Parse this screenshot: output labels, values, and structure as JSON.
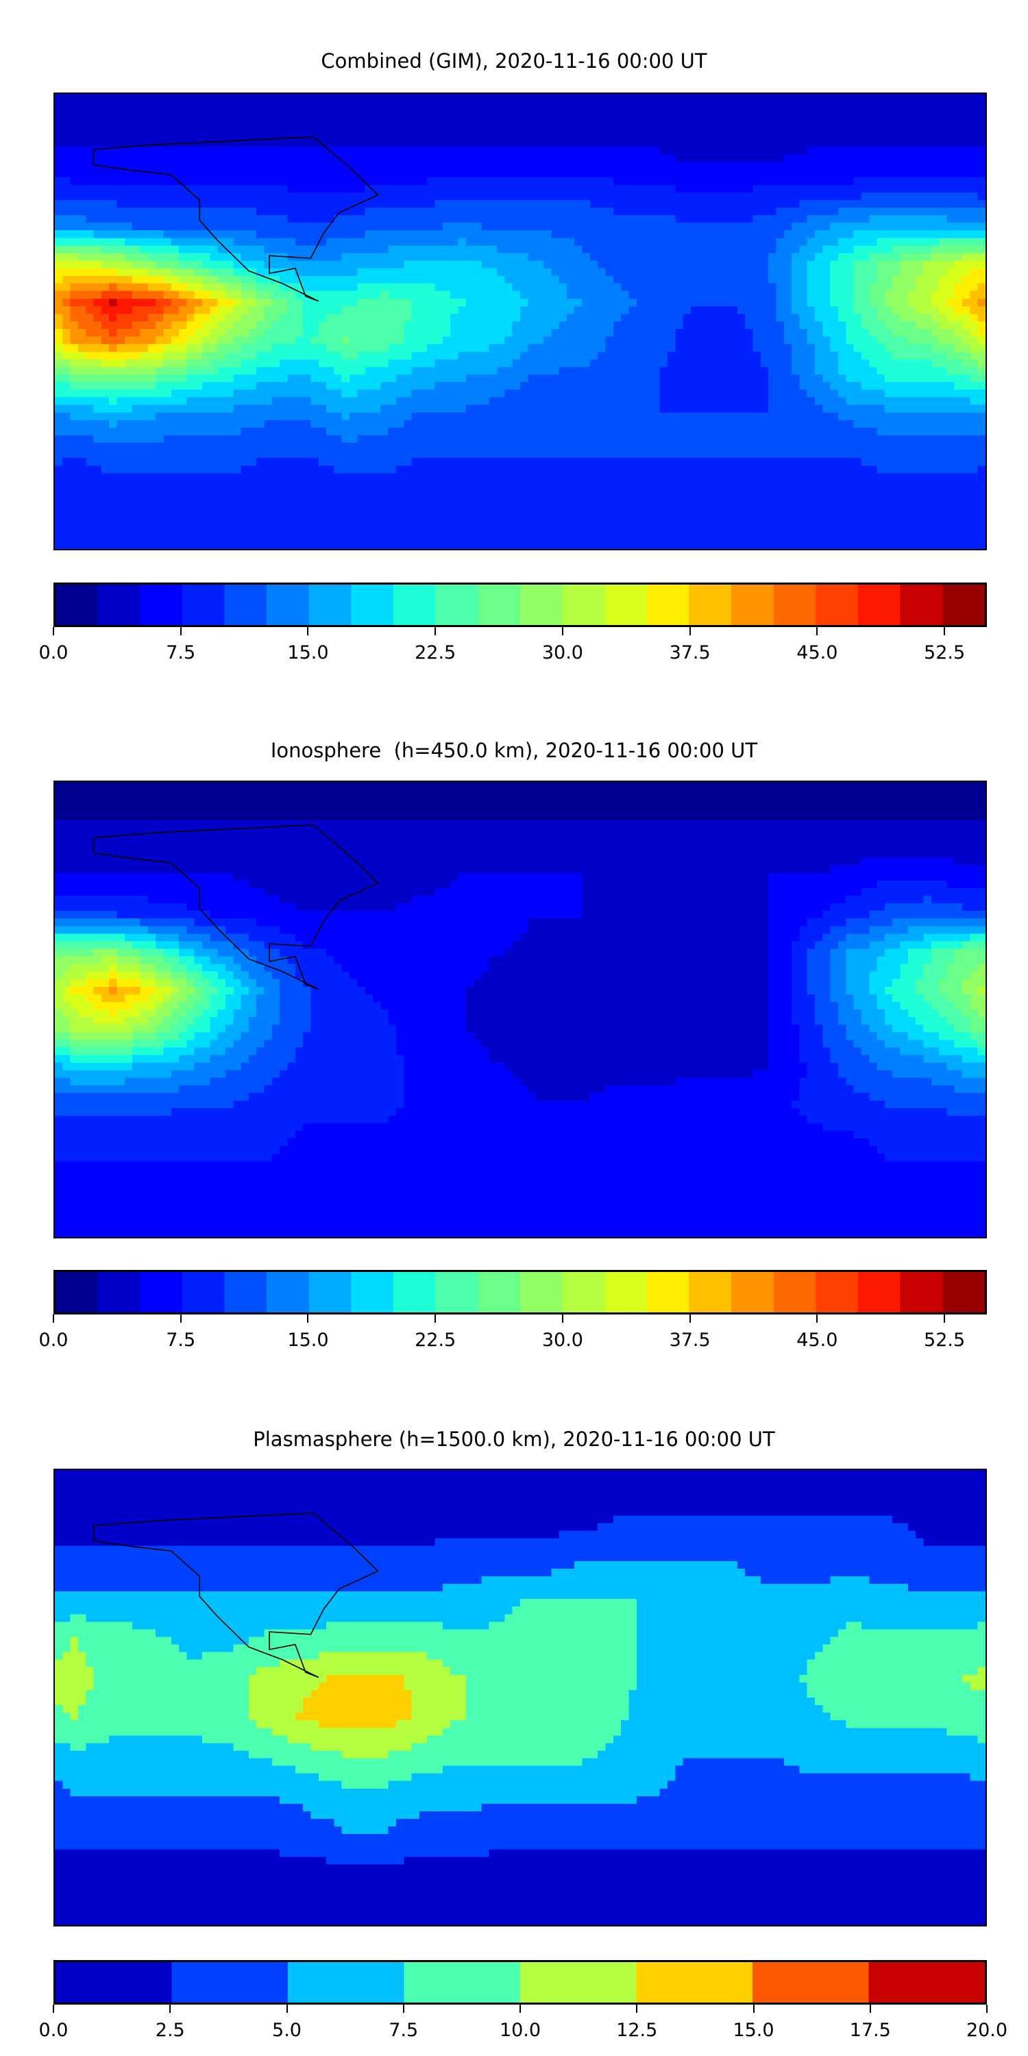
{
  "chart_data": [
    {
      "type": "heatmap",
      "title": "Combined (GIM), 2020-11-16 00:00 UT",
      "lon_range": [
        -180,
        180
      ],
      "lat_range": [
        -90,
        90
      ],
      "grid_note": "approx values, 15 deg grid, rows 90N to 90S, cols 180W eastward",
      "levels": {
        "min": 0,
        "max": 55,
        "step": 2.5
      },
      "colors": [
        "#000090",
        "#0000c8",
        "#0000ff",
        "#0020ff",
        "#0050ff",
        "#0080ff",
        "#00acff",
        "#00dcff",
        "#1effd8",
        "#4cffaa",
        "#6aff88",
        "#92ff64",
        "#b4ff40",
        "#d8ff1c",
        "#ffee00",
        "#ffc000",
        "#ff9400",
        "#ff6a00",
        "#ff4000",
        "#ff1800",
        "#c80000",
        "#960000"
      ],
      "ticks": [
        "0.0",
        "7.5",
        "15.0",
        "22.5",
        "30.0",
        "37.5",
        "45.0",
        "52.5"
      ],
      "tick_values": [
        0,
        7.5,
        15,
        22.5,
        30,
        37.5,
        45,
        52.5
      ],
      "grid": [
        [
          3,
          3,
          3,
          3,
          3,
          3,
          3,
          3,
          3,
          3,
          3,
          3,
          3,
          3,
          3,
          3,
          3,
          3,
          3,
          3,
          3,
          3,
          3,
          3
        ],
        [
          5,
          5,
          5,
          5,
          5,
          5,
          5,
          5,
          5,
          5,
          5,
          5,
          5,
          5,
          5,
          5,
          4,
          4,
          4,
          5,
          5,
          5,
          5,
          5
        ],
        [
          8,
          8,
          8,
          8,
          8,
          8,
          7,
          7,
          8,
          8,
          9,
          9,
          9,
          9,
          8,
          8,
          7,
          7,
          8,
          8,
          8,
          9,
          9,
          9
        ],
        [
          14,
          13,
          12,
          12,
          12,
          11,
          10,
          11,
          12,
          12,
          13,
          12,
          12,
          12,
          11,
          11,
          10,
          10,
          11,
          14,
          16,
          17,
          17,
          16
        ],
        [
          34,
          32,
          28,
          24,
          20,
          17,
          15,
          16,
          17,
          18,
          18,
          17,
          15,
          13,
          12,
          11,
          10,
          10,
          13,
          18,
          22,
          26,
          30,
          34
        ],
        [
          45,
          50,
          48,
          42,
          35,
          28,
          22,
          22,
          24,
          22,
          20,
          19,
          17,
          15,
          13,
          12,
          10,
          10,
          12,
          18,
          22,
          28,
          32,
          38
        ],
        [
          40,
          44,
          40,
          34,
          28,
          24,
          22,
          25,
          24,
          21,
          19,
          18,
          15,
          14,
          12,
          11,
          9,
          9,
          11,
          15,
          20,
          24,
          26,
          30
        ],
        [
          25,
          26,
          25,
          22,
          20,
          18,
          17,
          20,
          18,
          16,
          15,
          14,
          12,
          12,
          11,
          10,
          9,
          9,
          10,
          14,
          18,
          20,
          20,
          22
        ],
        [
          15,
          16,
          15,
          14,
          14,
          13,
          13,
          15,
          14,
          12,
          12,
          11,
          10,
          10,
          10,
          10,
          10,
          10,
          10,
          11,
          13,
          14,
          14,
          14
        ],
        [
          10,
          11,
          11,
          11,
          11,
          10,
          10,
          11,
          11,
          10,
          10,
          10,
          10,
          10,
          10,
          10,
          10,
          10,
          10,
          10,
          10,
          11,
          11,
          11
        ],
        [
          9,
          9,
          9,
          9,
          9,
          9,
          9,
          9,
          9,
          9,
          9,
          9,
          9,
          9,
          9,
          9,
          9,
          9,
          9,
          9,
          9,
          9,
          9,
          9
        ],
        [
          8,
          8,
          8,
          8,
          8,
          8,
          8,
          8,
          8,
          8,
          8,
          8,
          8,
          8,
          8,
          8,
          8,
          8,
          8,
          8,
          8,
          8,
          8,
          8
        ]
      ]
    },
    {
      "type": "heatmap",
      "title": "Ionosphere  (h=450.0 km), 2020-11-16 00:00 UT",
      "lon_range": [
        -180,
        180
      ],
      "lat_range": [
        -90,
        90
      ],
      "levels": {
        "min": 0,
        "max": 55,
        "step": 2.5
      },
      "colors": [
        "#000090",
        "#0000c8",
        "#0000ff",
        "#0020ff",
        "#0050ff",
        "#0080ff",
        "#00acff",
        "#00dcff",
        "#1effd8",
        "#4cffaa",
        "#6aff88",
        "#92ff64",
        "#b4ff40",
        "#d8ff1c",
        "#ffee00",
        "#ffc000",
        "#ff9400",
        "#ff6a00",
        "#ff4000",
        "#ff1800",
        "#c80000",
        "#960000"
      ],
      "ticks": [
        "0.0",
        "7.5",
        "15.0",
        "22.5",
        "30.0",
        "37.5",
        "45.0",
        "52.5"
      ],
      "tick_values": [
        0,
        7.5,
        15,
        22.5,
        30,
        37.5,
        45,
        52.5
      ],
      "grid": [
        [
          2,
          2,
          2,
          2,
          2,
          2,
          2,
          2,
          2,
          2,
          2,
          2,
          2,
          2,
          2,
          2,
          2,
          2,
          2,
          2,
          2,
          2,
          2,
          2
        ],
        [
          3,
          3,
          3,
          3,
          3,
          3,
          3,
          3,
          3,
          3,
          3,
          3,
          3,
          3,
          3,
          3,
          3,
          3,
          3,
          3,
          3,
          3,
          3,
          3
        ],
        [
          5,
          5,
          5,
          5,
          5,
          4,
          3,
          3,
          3,
          4,
          5,
          5,
          5,
          5,
          4,
          4,
          4,
          4,
          5,
          5,
          6,
          7,
          7,
          6
        ],
        [
          10,
          10,
          9,
          8,
          7,
          6,
          5,
          5,
          5,
          6,
          6,
          6,
          5,
          5,
          4,
          4,
          4,
          4,
          5,
          7,
          9,
          11,
          12,
          11
        ],
        [
          27,
          28,
          24,
          18,
          14,
          11,
          8,
          7,
          6,
          6,
          6,
          5,
          4,
          3,
          3,
          3,
          3,
          3,
          5,
          10,
          15,
          18,
          22,
          26
        ],
        [
          35,
          40,
          36,
          28,
          20,
          14,
          10,
          8,
          7,
          6,
          5,
          4,
          3,
          3,
          3,
          3,
          3,
          3,
          5,
          10,
          15,
          20,
          24,
          28
        ],
        [
          30,
          32,
          28,
          22,
          17,
          13,
          10,
          9,
          8,
          6,
          5,
          4,
          3,
          3,
          3,
          3,
          3,
          3,
          5,
          9,
          13,
          17,
          20,
          24
        ],
        [
          18,
          18,
          17,
          15,
          13,
          11,
          9,
          9,
          8,
          7,
          6,
          5,
          4,
          4,
          4,
          4,
          4,
          4,
          5,
          8,
          11,
          13,
          14,
          16
        ],
        [
          11,
          11,
          11,
          10,
          10,
          9,
          8,
          8,
          8,
          7,
          7,
          6,
          5,
          5,
          6,
          6,
          7,
          7,
          7,
          8,
          9,
          10,
          10,
          11
        ],
        [
          8,
          8,
          8,
          8,
          8,
          8,
          7,
          7,
          7,
          7,
          7,
          7,
          7,
          7,
          7,
          7,
          7,
          7,
          7,
          7,
          7,
          8,
          8,
          8
        ],
        [
          7,
          7,
          7,
          7,
          7,
          7,
          7,
          7,
          7,
          7,
          7,
          7,
          7,
          7,
          7,
          7,
          7,
          7,
          7,
          7,
          7,
          7,
          7,
          7
        ],
        [
          6,
          6,
          6,
          6,
          6,
          6,
          6,
          6,
          6,
          6,
          6,
          6,
          6,
          6,
          6,
          6,
          6,
          6,
          6,
          6,
          6,
          6,
          6,
          6
        ]
      ]
    },
    {
      "type": "heatmap",
      "title": "Plasmasphere (h=1500.0 km), 2020-11-16 00:00 UT",
      "lon_range": [
        -180,
        180
      ],
      "lat_range": [
        -90,
        90
      ],
      "levels": {
        "min": 0,
        "max": 20,
        "step": 2.5
      },
      "colors": [
        "#0000c8",
        "#0040ff",
        "#00c0ff",
        "#4cffb0",
        "#b4ff40",
        "#ffd000",
        "#ff5a00",
        "#c80000"
      ],
      "ticks": [
        "0.0",
        "2.5",
        "5.0",
        "7.5",
        "10.0",
        "12.5",
        "15.0",
        "17.5",
        "20.0"
      ],
      "tick_values": [
        0,
        2.5,
        5,
        7.5,
        10,
        12.5,
        15,
        17.5,
        20
      ],
      "grid": [
        [
          1,
          1,
          1,
          1,
          1,
          1,
          1,
          1,
          1,
          1,
          1,
          1,
          1,
          1,
          1,
          1,
          1,
          1,
          1,
          1,
          1,
          1,
          1,
          1
        ],
        [
          2,
          2,
          2,
          2,
          2,
          2,
          2,
          2,
          2,
          2,
          2,
          2,
          2,
          2,
          3,
          3,
          3,
          3,
          3,
          3,
          3,
          3,
          2,
          2
        ],
        [
          3,
          3,
          3,
          3,
          3,
          3,
          3,
          3,
          3,
          3,
          4,
          4,
          4,
          5,
          5,
          5,
          5,
          5,
          4,
          4,
          4,
          4,
          3,
          3
        ],
        [
          6,
          6,
          6,
          6,
          6,
          6,
          6,
          6,
          6,
          6,
          6,
          7,
          8,
          8,
          8,
          7,
          6,
          6,
          6,
          6,
          7,
          6,
          6,
          6
        ],
        [
          10,
          9,
          8,
          7,
          7,
          8,
          8,
          9,
          9,
          9,
          8,
          8,
          8,
          8,
          8,
          7,
          6,
          6,
          6,
          7,
          8,
          8,
          8,
          8
        ],
        [
          11,
          9,
          8,
          8,
          9,
          11,
          12,
          13,
          13,
          12,
          10,
          9,
          8,
          8,
          8,
          7,
          6,
          6,
          6,
          8,
          9,
          9,
          9,
          10
        ],
        [
          10,
          8,
          8,
          8,
          9,
          11,
          13,
          14,
          14,
          12,
          10,
          9,
          8,
          8,
          8,
          6,
          5,
          5,
          5,
          7,
          8,
          8,
          8,
          9
        ],
        [
          7,
          7,
          7,
          7,
          7,
          8,
          9,
          10,
          10,
          9,
          8,
          8,
          8,
          8,
          7,
          6,
          5,
          5,
          5,
          6,
          6,
          6,
          6,
          6
        ],
        [
          5,
          5,
          5,
          5,
          5,
          5,
          6,
          7,
          7,
          6,
          6,
          6,
          6,
          6,
          6,
          5,
          4,
          4,
          4,
          4,
          4,
          4,
          4,
          4
        ],
        [
          3,
          3,
          3,
          3,
          3,
          3,
          4,
          5,
          5,
          4,
          4,
          3,
          3,
          3,
          3,
          3,
          3,
          3,
          3,
          3,
          3,
          3,
          3,
          3
        ],
        [
          2,
          2,
          2,
          2,
          2,
          2,
          2,
          2,
          2,
          2,
          2,
          2,
          2,
          2,
          2,
          2,
          2,
          2,
          2,
          2,
          2,
          2,
          2,
          2
        ],
        [
          2,
          2,
          2,
          2,
          2,
          2,
          2,
          2,
          2,
          2,
          2,
          2,
          2,
          2,
          2,
          2,
          2,
          2,
          2,
          2,
          2,
          2,
          2,
          2
        ]
      ]
    }
  ]
}
